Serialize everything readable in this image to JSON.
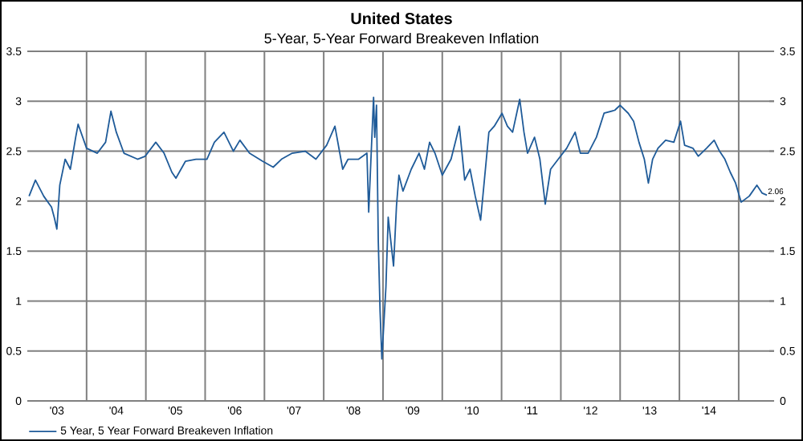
{
  "chart_data": {
    "type": "line",
    "title": "United States",
    "subtitle": "5-Year, 5-Year Forward Breakeven Inflation",
    "series": [
      {
        "name": "5 Year, 5 Year Forward Breakeven Inflation",
        "color": "#1f5b99",
        "x": [
          "2003-01-12",
          "2003-02-20",
          "2003-04-12",
          "2003-05-30",
          "2003-06-17",
          "2003-07-02",
          "2003-07-20",
          "2003-08-22",
          "2003-09-23",
          "2003-10-26",
          "2003-11-10",
          "2004-01-01",
          "2004-03-07",
          "2004-04-27",
          "2004-05-30",
          "2004-07-02",
          "2004-08-18",
          "2004-11-10",
          "2004-12-27",
          "2005-03-03",
          "2005-04-23",
          "2005-06-10",
          "2005-07-05",
          "2005-09-02",
          "2005-11-06",
          "2006-01-12",
          "2006-02-27",
          "2006-04-27",
          "2006-06-24",
          "2006-08-03",
          "2006-10-01",
          "2006-12-20",
          "2007-02-24",
          "2007-04-16",
          "2007-06-21",
          "2007-09-09",
          "2007-11-14",
          "2008-01-19",
          "2008-03-10",
          "2008-04-27",
          "2008-05-30",
          "2008-08-03",
          "2008-09-23",
          "2008-10-04",
          "2008-11-03",
          "2008-11-10",
          "2008-11-21",
          "2008-12-02",
          "2008-12-13",
          "2008-12-24",
          "2009-01-19",
          "2009-02-02",
          "2009-03-07",
          "2009-03-25",
          "2009-04-09",
          "2009-05-04",
          "2009-06-24",
          "2009-08-11",
          "2009-09-13",
          "2009-10-15",
          "2009-11-17",
          "2010-01-01",
          "2010-02-24",
          "2010-04-16",
          "2010-05-19",
          "2010-06-21",
          "2010-07-23",
          "2010-08-25",
          "2010-10-15",
          "2010-11-17",
          "2011-01-04",
          "2011-02-06",
          "2011-03-10",
          "2011-04-23",
          "2011-05-19",
          "2011-06-10",
          "2011-07-23",
          "2011-08-25",
          "2011-09-27",
          "2011-10-30",
          "2011-12-16",
          "2012-02-06",
          "2012-03-29",
          "2012-04-30",
          "2012-06-17",
          "2012-08-07",
          "2012-09-23",
          "2012-11-28",
          "2013-01-01",
          "2013-02-20",
          "2013-03-25",
          "2013-04-27",
          "2013-05-30",
          "2013-06-24",
          "2013-07-20",
          "2013-08-22",
          "2013-10-08",
          "2013-11-28",
          "2014-01-08",
          "2014-02-02",
          "2014-03-25",
          "2014-04-27",
          "2014-06-17",
          "2014-08-03",
          "2014-09-05",
          "2014-10-08",
          "2014-11-10",
          "2014-12-13",
          "2015-01-16",
          "2015-03-07",
          "2015-04-23",
          "2015-05-26",
          "2015-06-24"
        ],
        "values": [
          2.05,
          2.21,
          2.05,
          1.94,
          1.83,
          1.72,
          2.16,
          2.42,
          2.32,
          2.64,
          2.77,
          2.53,
          2.48,
          2.59,
          2.9,
          2.69,
          2.48,
          2.42,
          2.45,
          2.59,
          2.48,
          2.29,
          2.23,
          2.4,
          2.42,
          2.42,
          2.59,
          2.69,
          2.5,
          2.61,
          2.48,
          2.4,
          2.34,
          2.42,
          2.48,
          2.5,
          2.42,
          2.56,
          2.75,
          2.32,
          2.42,
          2.42,
          2.48,
          1.89,
          3.04,
          2.64,
          2.96,
          1.6,
          0.9,
          0.42,
          1.14,
          1.84,
          1.35,
          1.95,
          2.26,
          2.1,
          2.32,
          2.48,
          2.32,
          2.59,
          2.48,
          2.26,
          2.42,
          2.75,
          2.21,
          2.32,
          2.05,
          1.81,
          2.69,
          2.75,
          2.88,
          2.75,
          2.69,
          3.02,
          2.69,
          2.48,
          2.64,
          2.42,
          1.97,
          2.32,
          2.42,
          2.53,
          2.69,
          2.48,
          2.48,
          2.64,
          2.88,
          2.91,
          2.96,
          2.88,
          2.8,
          2.59,
          2.42,
          2.18,
          2.42,
          2.53,
          2.61,
          2.59,
          2.8,
          2.56,
          2.53,
          2.45,
          2.53,
          2.61,
          2.5,
          2.42,
          2.29,
          2.18,
          1.99,
          2.05,
          2.16,
          2.08,
          2.06
        ]
      }
    ],
    "xlim": [
      "2003-01-01",
      "2015-08-07"
    ],
    "xticks": [
      {
        "value": "2003-07-02",
        "label": "'03"
      },
      {
        "value": "2004-01-01",
        "label": null
      },
      {
        "value": "2004-07-02",
        "label": "'04"
      },
      {
        "value": "2005-01-01",
        "label": null
      },
      {
        "value": "2005-07-02",
        "label": "'05"
      },
      {
        "value": "2006-01-01",
        "label": null
      },
      {
        "value": "2006-07-02",
        "label": "'06"
      },
      {
        "value": "2007-01-01",
        "label": null
      },
      {
        "value": "2007-07-02",
        "label": "'07"
      },
      {
        "value": "2008-01-01",
        "label": null
      },
      {
        "value": "2008-07-02",
        "label": "'08"
      },
      {
        "value": "2009-01-01",
        "label": null
      },
      {
        "value": "2009-07-02",
        "label": "'09"
      },
      {
        "value": "2010-01-01",
        "label": null
      },
      {
        "value": "2010-07-02",
        "label": "'10"
      },
      {
        "value": "2011-01-01",
        "label": null
      },
      {
        "value": "2011-07-02",
        "label": "'11"
      },
      {
        "value": "2012-01-01",
        "label": null
      },
      {
        "value": "2012-07-02",
        "label": "'12"
      },
      {
        "value": "2013-01-01",
        "label": null
      },
      {
        "value": "2013-07-02",
        "label": "'13"
      },
      {
        "value": "2014-01-01",
        "label": null
      },
      {
        "value": "2014-07-02",
        "label": "'14"
      },
      {
        "value": "2015-01-01",
        "label": null
      }
    ],
    "ylim": [
      0,
      3.5
    ],
    "yticks": [
      0,
      0.5,
      1,
      1.5,
      2,
      2.5,
      3,
      3.5
    ],
    "y2lim": [
      0,
      3.5
    ],
    "y2ticks": [
      0,
      0.5,
      1,
      1.5,
      2,
      2.5,
      3,
      3.5
    ],
    "annotations": [
      {
        "text": "2.06",
        "x": "2015-06-24",
        "y": 2.06
      }
    ],
    "grid": true,
    "legend": "bottom",
    "line_style": "solid"
  }
}
